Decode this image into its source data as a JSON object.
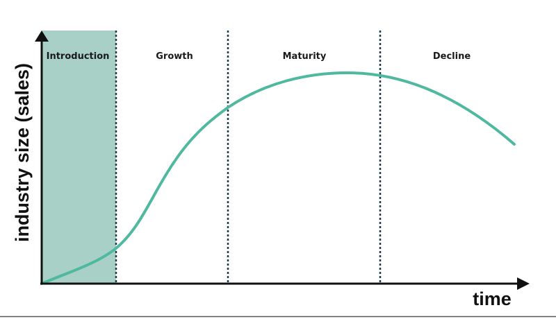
{
  "diagram": {
    "stages": [
      "Introduction",
      "Growth",
      "Maturity",
      "Decline"
    ],
    "y_axis_label": "industry size (sales)",
    "x_axis_label": "time",
    "colors": {
      "curve": "#4fb9a0",
      "introduction_fill": "#a8d0c7",
      "divider": "#1c3a4e",
      "axis": "#111111"
    }
  }
}
